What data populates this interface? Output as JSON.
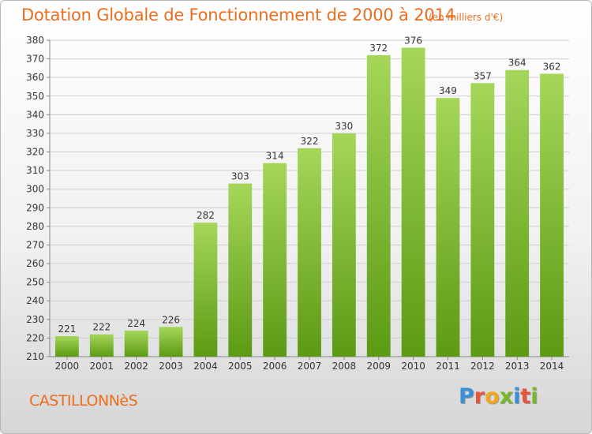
{
  "header": {
    "title": "Dotation Globale de Fonctionnement de 2000 à 2014",
    "unit": "(en milliers d'€)"
  },
  "footer": {
    "commune": "CASTILLONNèS",
    "logo": "Proxiti",
    "logo_colors": [
      "#3a8fd8",
      "#e8543a",
      "#f3a81c",
      "#79b72a",
      "#3a8fd8",
      "#e8543a",
      "#79b72a"
    ]
  },
  "colors": {
    "bar_light": "#a5d65a",
    "bar_dark": "#5c9a14",
    "text": "#333333",
    "accent": "#ea6e1f"
  },
  "chart_data": {
    "type": "bar",
    "categories": [
      "2000",
      "2001",
      "2002",
      "2003",
      "2004",
      "2005",
      "2006",
      "2007",
      "2008",
      "2009",
      "2010",
      "2011",
      "2012",
      "2013",
      "2014"
    ],
    "values": [
      221,
      222,
      224,
      226,
      282,
      303,
      314,
      322,
      330,
      372,
      376,
      349,
      357,
      364,
      362
    ],
    "ylim": [
      210,
      380
    ],
    "yticks": [
      210,
      220,
      230,
      240,
      250,
      260,
      270,
      280,
      290,
      300,
      310,
      320,
      330,
      340,
      350,
      360,
      370,
      380
    ],
    "grid": true,
    "title": "Dotation Globale de Fonctionnement de 2000 à 2014",
    "xlabel": "",
    "ylabel": ""
  }
}
